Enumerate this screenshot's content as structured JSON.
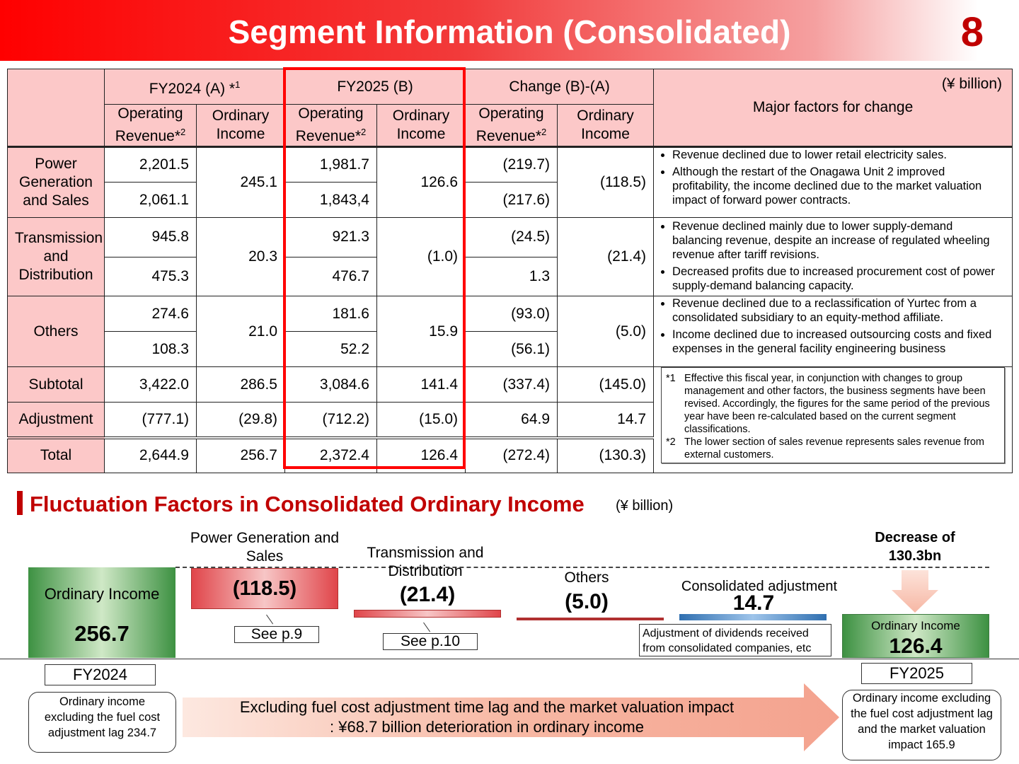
{
  "header": {
    "title": "Segment Information (Consolidated)",
    "page_number": "8"
  },
  "table": {
    "unit": "(¥ billion)",
    "periods": [
      {
        "label": "FY2024 (A) *",
        "sup": "1"
      },
      {
        "label": "FY2025 (B)",
        "sup": ""
      },
      {
        "label": "Change (B)-(A)",
        "sup": ""
      }
    ],
    "col_revenue_line1": "Operating",
    "col_revenue_line2": "Revenue*",
    "col_revenue_sup": "2",
    "col_income_line1": "Ordinary",
    "col_income_line2": "Income",
    "factors_header": "Major factors for change",
    "segments": [
      {
        "name": "Power Generation and Sales",
        "rev_a_top": "2,201.5",
        "rev_a_bottom": "2,061.1",
        "inc_a": "245.1",
        "rev_b_top": "1,981.7",
        "rev_b_bottom": "1,843,4",
        "inc_b": "126.6",
        "rev_c_top": "(219.7)",
        "rev_c_bottom": "(217.6)",
        "inc_c": "(118.5)",
        "factors": [
          "Revenue declined due to lower retail electricity sales.",
          "Although the restart of the Onagawa Unit 2 improved profitability, the income declined due to the market valuation impact of forward power contracts."
        ]
      },
      {
        "name": "Transmission and Distribution",
        "rev_a_top": "945.8",
        "rev_a_bottom": "475.3",
        "inc_a": "20.3",
        "rev_b_top": "921.3",
        "rev_b_bottom": "476.7",
        "inc_b": "(1.0)",
        "rev_c_top": "(24.5)",
        "rev_c_bottom": "1.3",
        "inc_c": "(21.4)",
        "factors": [
          "Revenue declined mainly due to lower supply-demand balancing revenue, despite an increase of regulated wheeling revenue after tariff revisions.",
          "Decreased profits due to increased procurement cost of power supply-demand balancing capacity."
        ]
      },
      {
        "name": "Others",
        "rev_a_top": "274.6",
        "rev_a_bottom": "108.3",
        "inc_a": "21.0",
        "rev_b_top": "181.6",
        "rev_b_bottom": "52.2",
        "inc_b": "15.9",
        "rev_c_top": "(93.0)",
        "rev_c_bottom": "(56.1)",
        "inc_c": "(5.0)",
        "factors": [
          "Revenue declined due to a reclassification of Yurtec from a consolidated subsidiary to an equity-method affiliate.",
          "Income declined due to increased outsourcing costs and fixed expenses in the general facility engineering business"
        ]
      }
    ],
    "totals": [
      {
        "name": "Subtotal",
        "values": [
          "3,422.0",
          "286.5",
          "3,084.6",
          "141.4",
          "(337.4)",
          "(145.0)"
        ]
      },
      {
        "name": "Adjustment",
        "values": [
          "(777.1)",
          "(29.8)",
          "(712.2)",
          "(15.0)",
          "64.9",
          "14.7"
        ]
      },
      {
        "name": "Total",
        "values": [
          "2,644.9",
          "256.7",
          "2,372.4",
          "126.4",
          "(272.4)",
          "(130.3)"
        ]
      }
    ],
    "notes": [
      {
        "mark": "*1",
        "text": "Effective this fiscal year, in conjunction with changes to group management and other factors, the business segments have been revised. Accordingly, the figures for the same period of the previous year have been re-calculated based on the current segment classifications."
      },
      {
        "mark": "*2",
        "text": "The lower section of sales revenue represents sales revenue from external customers."
      }
    ]
  },
  "fluctuation": {
    "title": "Fluctuation Factors in Consolidated Ordinary Income",
    "unit": "(¥ billion)",
    "start_label": "Ordinary Income",
    "start_value": "256.7",
    "start_fy": "FY2024",
    "start_note": "Ordinary income excluding the fuel cost adjustment lag 234.7",
    "pg_label": "Power Generation and Sales",
    "pg_value": "(118.5)",
    "pg_ref": "See p.9",
    "td_label": "Transmission and Distribution",
    "td_value": "(21.4)",
    "td_ref": "See p.10",
    "ot_label": "Others",
    "ot_value": "(5.0)",
    "adj_label": "Consolidated adjustment",
    "adj_value": "14.7",
    "adj_note": "Adjustment of dividends received from consolidated companies, etc",
    "decrease_text": "Decrease of 130.3bn",
    "end_label": "Ordinary Income",
    "end_value": "126.4",
    "end_fy": "FY2025",
    "end_note": "Ordinary income excluding the fuel cost adjustment lag and the market valuation impact 165.9",
    "arrow_line1": "Excluding fuel cost adjustment time lag and the market valuation impact",
    "arrow_line2": ": ¥68.7 billion deterioration in ordinary income",
    "colors": {
      "decrease": "#e0454a",
      "increase": "#2f6fb0",
      "total": "#3d9142",
      "accent": "#c00000"
    }
  }
}
